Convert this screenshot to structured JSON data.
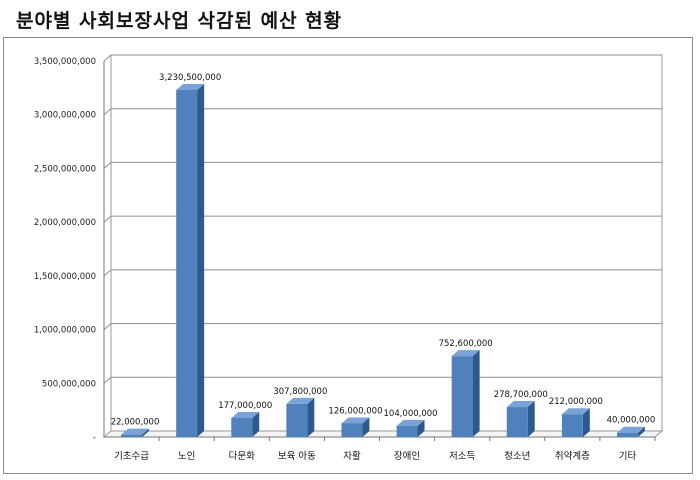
{
  "title": "분야별 사회보장사업 삭감된 예산 현황",
  "chart_data": {
    "type": "bar",
    "title": "분야별 사회보장사업 삭감된 예산 현황",
    "categories": [
      "기초수급",
      "노인",
      "다문화",
      "보육 아동",
      "자활",
      "장애인",
      "저소득",
      "청소년",
      "취약계층",
      "기타"
    ],
    "values": [
      22000000,
      3230500000,
      177000000,
      307800000,
      126000000,
      104000000,
      752600000,
      278700000,
      212000000,
      40000000
    ],
    "data_labels": [
      "22,000,000",
      "3,230,500,000",
      "177,000,000",
      "307,800,000",
      "126,000,000",
      "104,000,000",
      "752,600,000",
      "278,700,000",
      "212,000,000",
      "40,000,000"
    ],
    "yticks": [
      0,
      500000000,
      1000000000,
      1500000000,
      2000000000,
      2500000000,
      3000000000,
      3500000000
    ],
    "ytick_labels": [
      "-",
      "500,000,000",
      "1,000,000,000",
      "1,500,000,000",
      "2,000,000,000",
      "2,500,000,000",
      "3,000,000,000",
      "3,500,000,000"
    ],
    "ylim": [
      0,
      3500000000
    ],
    "grid": true,
    "bar_color": "#4f81bd",
    "bar_side_color": "#2c5a8e",
    "bar_top_color": "#7aa3d8"
  }
}
